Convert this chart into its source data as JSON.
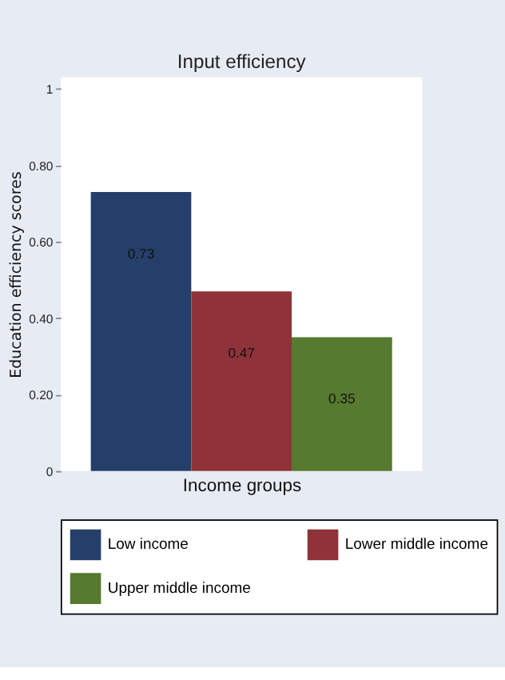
{
  "chart_data": {
    "type": "bar",
    "title": "Input efficiency",
    "xlabel": "Income groups",
    "ylabel": "Education efficiency scores",
    "categories": [
      null
    ],
    "series": [
      {
        "name": "Low income",
        "color": "#253f6a",
        "values": [
          0.73
        ]
      },
      {
        "name": "Lower middle income",
        "color": "#90323a",
        "values": [
          0.47
        ]
      },
      {
        "name": "Upper middle income",
        "color": "#567a2e",
        "values": [
          0.35
        ]
      }
    ],
    "ylim": [
      0,
      1.03
    ],
    "yticks": [
      0,
      {
        "value": 0.2,
        "label": "0.20"
      },
      {
        "value": 0.4,
        "label": "0.40"
      },
      {
        "value": 0.6,
        "label": "0.60"
      },
      {
        "value": 0.8,
        "label": "0.80"
      },
      1
    ],
    "data_labels": true,
    "grid": false,
    "legend": "bottom",
    "tick_labels": "y"
  }
}
